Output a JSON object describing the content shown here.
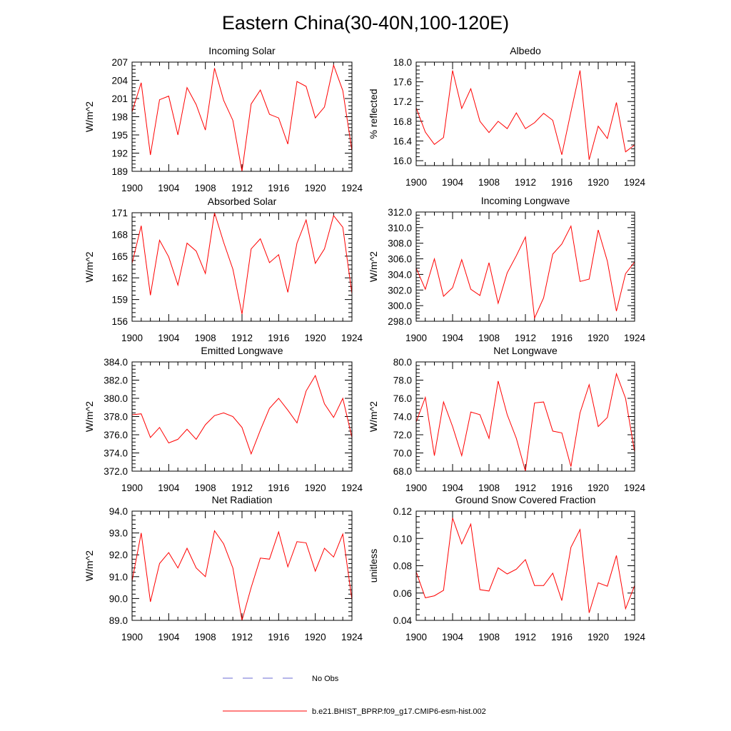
{
  "figure": {
    "title": "Eastern China(30-40N,100-120E)",
    "series_color": "#ff0000",
    "obs_color": "#6b6bd6"
  },
  "legend": {
    "obs_label": "No Obs",
    "model_label": "b.e21.BHIST_BPRP.f09_g17.CMIP6-esm-hist.002"
  },
  "chart_data": [
    {
      "type": "line",
      "title": "Incoming Solar",
      "xlabel": "",
      "ylabel": "W/m^2",
      "xlim": [
        1900,
        1924
      ],
      "ylim": [
        189,
        207
      ],
      "xticks": [
        1900,
        1904,
        1908,
        1912,
        1916,
        1920,
        1924
      ],
      "yticks": [
        189,
        192,
        195,
        198,
        201,
        204,
        207
      ],
      "ytick_labels": [
        "189",
        "192",
        "195",
        "198",
        "201",
        "204",
        "207"
      ],
      "x": [
        1900,
        1901,
        1902,
        1903,
        1904,
        1905,
        1906,
        1907,
        1908,
        1909,
        1910,
        1911,
        1912,
        1913,
        1914,
        1915,
        1916,
        1917,
        1918,
        1919,
        1920,
        1921,
        1922,
        1923,
        1924
      ],
      "series": [
        {
          "name": "b.e21.BHIST_BPRP.f09_g17.CMIP6-esm-hist.002",
          "values": [
            198.8,
            203.6,
            191.7,
            200.8,
            201.4,
            195.0,
            202.8,
            200.0,
            195.8,
            206.0,
            200.7,
            197.4,
            189.0,
            200.1,
            202.4,
            198.4,
            197.8,
            193.5,
            203.8,
            203.0,
            197.8,
            199.6,
            206.5,
            202.3,
            192.4
          ]
        }
      ]
    },
    {
      "type": "line",
      "title": "Albedo",
      "xlabel": "",
      "ylabel": "% reflected",
      "xlim": [
        1900,
        1924
      ],
      "ylim": [
        15.9,
        18.0
      ],
      "xticks": [
        1900,
        1904,
        1908,
        1912,
        1916,
        1920,
        1924
      ],
      "yticks": [
        16.0,
        16.4,
        16.8,
        17.2,
        17.6,
        18.0
      ],
      "ytick_labels": [
        "16.0",
        "16.4",
        "16.8",
        "17.2",
        "17.6",
        "18.0"
      ],
      "x": [
        1900,
        1901,
        1902,
        1903,
        1904,
        1905,
        1906,
        1907,
        1908,
        1909,
        1910,
        1911,
        1912,
        1913,
        1914,
        1915,
        1916,
        1917,
        1918,
        1919,
        1920,
        1921,
        1922,
        1923,
        1924
      ],
      "series": [
        {
          "name": "b.e21.BHIST_BPRP.f09_g17.CMIP6-esm-hist.002",
          "values": [
            17.07,
            16.58,
            16.33,
            16.47,
            17.83,
            17.06,
            17.46,
            16.8,
            16.57,
            16.8,
            16.65,
            16.97,
            16.65,
            16.77,
            16.96,
            16.82,
            16.12,
            16.99,
            17.83,
            16.02,
            16.7,
            16.45,
            17.18,
            16.18,
            16.32
          ]
        }
      ]
    },
    {
      "type": "line",
      "title": "Absorbed Solar",
      "xlabel": "",
      "ylabel": "W/m^2",
      "xlim": [
        1900,
        1924
      ],
      "ylim": [
        156,
        171
      ],
      "xticks": [
        1900,
        1904,
        1908,
        1912,
        1916,
        1920,
        1924
      ],
      "yticks": [
        156,
        159,
        162,
        165,
        168,
        171
      ],
      "ytick_labels": [
        "156",
        "159",
        "162",
        "165",
        "168",
        "171"
      ],
      "x": [
        1900,
        1901,
        1902,
        1903,
        1904,
        1905,
        1906,
        1907,
        1908,
        1909,
        1910,
        1911,
        1912,
        1913,
        1914,
        1915,
        1916,
        1917,
        1918,
        1919,
        1920,
        1921,
        1922,
        1923,
        1924
      ],
      "series": [
        {
          "name": "b.e21.BHIST_BPRP.f09_g17.CMIP6-esm-hist.002",
          "values": [
            164.0,
            169.2,
            159.6,
            167.2,
            164.9,
            161.0,
            166.8,
            165.7,
            162.6,
            171.0,
            166.9,
            163.2,
            157.0,
            166.0,
            167.4,
            164.1,
            165.2,
            160.0,
            166.8,
            170.0,
            164.0,
            166.0,
            170.6,
            169.0,
            159.8
          ]
        }
      ]
    },
    {
      "type": "line",
      "title": "Incoming Longwave",
      "xlabel": "",
      "ylabel": "W/m^2",
      "xlim": [
        1900,
        1924
      ],
      "ylim": [
        298.0,
        312.0
      ],
      "xticks": [
        1900,
        1904,
        1908,
        1912,
        1916,
        1920,
        1924
      ],
      "yticks": [
        298.0,
        300.0,
        302.0,
        304.0,
        306.0,
        308.0,
        310.0,
        312.0
      ],
      "ytick_labels": [
        "298.0",
        "300.0",
        "302.0",
        "304.0",
        "306.0",
        "308.0",
        "310.0",
        "312.0"
      ],
      "x": [
        1900,
        1901,
        1902,
        1903,
        1904,
        1905,
        1906,
        1907,
        1908,
        1909,
        1910,
        1911,
        1912,
        1913,
        1914,
        1915,
        1916,
        1917,
        1918,
        1919,
        1920,
        1921,
        1922,
        1923,
        1924
      ],
      "series": [
        {
          "name": "b.e21.BHIST_BPRP.f09_g17.CMIP6-esm-hist.002",
          "values": [
            304.8,
            302.1,
            306.0,
            301.2,
            302.3,
            305.9,
            302.1,
            301.3,
            305.5,
            300.3,
            304.2,
            306.4,
            308.8,
            298.4,
            301.0,
            306.6,
            307.9,
            310.2,
            303.1,
            303.4,
            309.7,
            305.7,
            299.3,
            304.1,
            305.6
          ]
        }
      ]
    },
    {
      "type": "line",
      "title": "Emitted Longwave",
      "xlabel": "",
      "ylabel": "W/m^2",
      "xlim": [
        1900,
        1924
      ],
      "ylim": [
        372.0,
        384.0
      ],
      "xticks": [
        1900,
        1904,
        1908,
        1912,
        1916,
        1920,
        1924
      ],
      "yticks": [
        372.0,
        374.0,
        376.0,
        378.0,
        380.0,
        382.0,
        384.0
      ],
      "ytick_labels": [
        "372.0",
        "374.0",
        "376.0",
        "378.0",
        "380.0",
        "382.0",
        "384.0"
      ],
      "x": [
        1900,
        1901,
        1902,
        1903,
        1904,
        1905,
        1906,
        1907,
        1908,
        1909,
        1910,
        1911,
        1912,
        1913,
        1914,
        1915,
        1916,
        1917,
        1918,
        1919,
        1920,
        1921,
        1922,
        1923,
        1924
      ],
      "series": [
        {
          "name": "b.e21.BHIST_BPRP.f09_g17.CMIP6-esm-hist.002",
          "values": [
            378.2,
            378.3,
            375.7,
            376.8,
            375.1,
            375.5,
            376.6,
            375.5,
            377.1,
            378.1,
            378.4,
            378.0,
            376.8,
            373.9,
            376.5,
            378.9,
            380.0,
            378.7,
            377.3,
            380.8,
            382.5,
            379.4,
            377.9,
            380.0,
            375.7
          ]
        }
      ]
    },
    {
      "type": "line",
      "title": "Net Longwave",
      "xlabel": "",
      "ylabel": "W/m^2",
      "xlim": [
        1900,
        1924
      ],
      "ylim": [
        68.0,
        80.0
      ],
      "xticks": [
        1900,
        1904,
        1908,
        1912,
        1916,
        1920,
        1924
      ],
      "yticks": [
        68.0,
        70.0,
        72.0,
        74.0,
        76.0,
        78.0,
        80.0
      ],
      "ytick_labels": [
        "68.0",
        "70.0",
        "72.0",
        "74.0",
        "76.0",
        "78.0",
        "80.0"
      ],
      "x": [
        1900,
        1901,
        1902,
        1903,
        1904,
        1905,
        1906,
        1907,
        1908,
        1909,
        1910,
        1911,
        1912,
        1913,
        1914,
        1915,
        1916,
        1917,
        1918,
        1919,
        1920,
        1921,
        1922,
        1923,
        1924
      ],
      "series": [
        {
          "name": "b.e21.BHIST_BPRP.f09_g17.CMIP6-esm-hist.002",
          "values": [
            73.4,
            76.1,
            69.7,
            75.6,
            72.9,
            69.7,
            74.5,
            74.2,
            71.6,
            77.9,
            74.2,
            71.6,
            68.0,
            75.5,
            75.6,
            72.4,
            72.2,
            68.5,
            74.4,
            77.5,
            72.9,
            73.9,
            78.7,
            76.0,
            70.1
          ]
        }
      ]
    },
    {
      "type": "line",
      "title": "Net Radiation",
      "xlabel": "",
      "ylabel": "W/m^2",
      "xlim": [
        1900,
        1924
      ],
      "ylim": [
        89.0,
        94.0
      ],
      "xticks": [
        1900,
        1904,
        1908,
        1912,
        1916,
        1920,
        1924
      ],
      "yticks": [
        89.0,
        90.0,
        91.0,
        92.0,
        93.0,
        94.0
      ],
      "ytick_labels": [
        "89.0",
        "90.0",
        "91.0",
        "92.0",
        "93.0",
        "94.0"
      ],
      "x": [
        1900,
        1901,
        1902,
        1903,
        1904,
        1905,
        1906,
        1907,
        1908,
        1909,
        1910,
        1911,
        1912,
        1913,
        1914,
        1915,
        1916,
        1917,
        1918,
        1919,
        1920,
        1921,
        1922,
        1923,
        1924
      ],
      "series": [
        {
          "name": "b.e21.BHIST_BPRP.f09_g17.CMIP6-esm-hist.002",
          "values": [
            90.8,
            93.0,
            89.85,
            91.6,
            92.1,
            91.4,
            92.3,
            91.4,
            91.0,
            93.1,
            92.5,
            91.4,
            89.0,
            90.5,
            91.85,
            91.8,
            93.05,
            91.45,
            92.6,
            92.55,
            91.25,
            92.3,
            91.9,
            92.95,
            89.95
          ]
        }
      ]
    },
    {
      "type": "line",
      "title": "Ground Snow Covered Fraction",
      "xlabel": "",
      "ylabel": "unitless",
      "xlim": [
        1900,
        1924
      ],
      "ylim": [
        0.04,
        0.12
      ],
      "xticks": [
        1900,
        1904,
        1908,
        1912,
        1916,
        1920,
        1924
      ],
      "yticks": [
        0.04,
        0.06,
        0.08,
        0.1,
        0.12
      ],
      "ytick_labels": [
        "0.04",
        "0.06",
        "0.08",
        "0.10",
        "0.12"
      ],
      "x": [
        1900,
        1901,
        1902,
        1903,
        1904,
        1905,
        1906,
        1907,
        1908,
        1909,
        1910,
        1911,
        1912,
        1913,
        1914,
        1915,
        1916,
        1917,
        1918,
        1919,
        1920,
        1921,
        1922,
        1923,
        1924
      ],
      "series": [
        {
          "name": "b.e21.BHIST_BPRP.f09_g17.CMIP6-esm-hist.002",
          "values": [
            0.0755,
            0.0565,
            0.058,
            0.062,
            0.115,
            0.096,
            0.1105,
            0.0625,
            0.0615,
            0.0785,
            0.074,
            0.0775,
            0.0845,
            0.0655,
            0.0655,
            0.0745,
            0.0545,
            0.0935,
            0.1065,
            0.0455,
            0.0675,
            0.065,
            0.0875,
            0.0485,
            0.0655
          ]
        }
      ]
    }
  ]
}
